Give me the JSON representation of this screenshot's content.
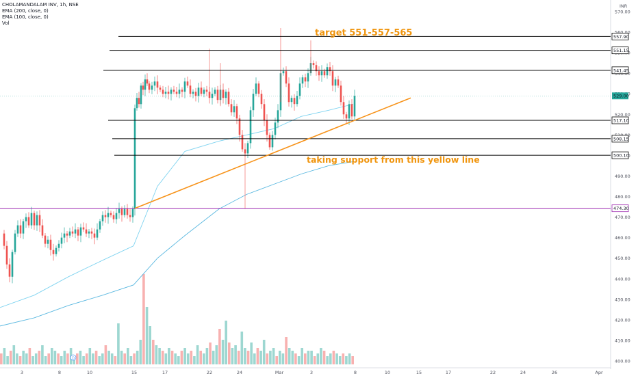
{
  "chart_data": {
    "type": "candlestick",
    "title": "CHOLAMANDALAM INV, 1h, NSE",
    "indicators": [
      "EMA (200, close, 0)",
      "EMA (100, close, 0)",
      "Vol"
    ],
    "currency_label": "INR",
    "y_ticks": [
      "570.00",
      "560.00",
      "550.00",
      "540.00",
      "530.00",
      "520.00",
      "510.00",
      "500.00",
      "490.00",
      "480.00",
      "470.00",
      "460.00",
      "450.00",
      "440.00",
      "430.00",
      "420.00",
      "410.00",
      "400.00"
    ],
    "ylim": [
      397,
      571
    ],
    "x_ticks": [
      "3",
      "8",
      "10",
      "15",
      "17",
      "22",
      "24",
      "Mar",
      "3",
      "8",
      "10",
      "15",
      "17",
      "22",
      "24",
      "26",
      "Apr"
    ],
    "horizontal_levels": [
      {
        "label": "557.90",
        "value": 557.9
      },
      {
        "label": "551.15",
        "value": 551.15
      },
      {
        "label": "541.45",
        "value": 541.45
      },
      {
        "label": "517.10",
        "value": 517.1
      },
      {
        "label": "508.15",
        "value": 508.15
      },
      {
        "label": "500.10",
        "value": 500.1
      }
    ],
    "purple_level": {
      "label": "474.30",
      "value": 474.3
    },
    "last_price": {
      "label": "529.00",
      "value": 529.0
    },
    "annotations": [
      {
        "text": "target 551-557-565"
      },
      {
        "text": "taking support from this yellow line"
      }
    ],
    "trendline": {
      "from": [
        197,
        474.3
      ],
      "to": [
        600,
        528
      ]
    },
    "price_path": [
      [
        0,
        462
      ],
      [
        6,
        456
      ],
      [
        10,
        447
      ],
      [
        14,
        441
      ],
      [
        18,
        453
      ],
      [
        22,
        462
      ],
      [
        26,
        466
      ],
      [
        30,
        462
      ],
      [
        34,
        468
      ],
      [
        38,
        470
      ],
      [
        42,
        466
      ],
      [
        46,
        472
      ],
      [
        50,
        466
      ],
      [
        54,
        471
      ],
      [
        58,
        466
      ],
      [
        62,
        461
      ],
      [
        66,
        457
      ],
      [
        70,
        459
      ],
      [
        74,
        454
      ],
      [
        78,
        452
      ],
      [
        82,
        455
      ],
      [
        86,
        457
      ],
      [
        90,
        460
      ],
      [
        94,
        462
      ],
      [
        98,
        461
      ],
      [
        102,
        463
      ],
      [
        106,
        462
      ],
      [
        110,
        464
      ],
      [
        114,
        461
      ],
      [
        118,
        465
      ],
      [
        122,
        464
      ],
      [
        126,
        462
      ],
      [
        130,
        463
      ],
      [
        134,
        462
      ],
      [
        138,
        460
      ],
      [
        142,
        464
      ],
      [
        146,
        468
      ],
      [
        150,
        471
      ],
      [
        154,
        470
      ],
      [
        158,
        472
      ],
      [
        162,
        471
      ],
      [
        166,
        469
      ],
      [
        170,
        472
      ],
      [
        174,
        474
      ],
      [
        178,
        471
      ],
      [
        182,
        474
      ],
      [
        186,
        471
      ],
      [
        190,
        470
      ],
      [
        194,
        474
      ],
      [
        197,
        523
      ],
      [
        200,
        528
      ],
      [
        203,
        525
      ],
      [
        206,
        534
      ],
      [
        209,
        532
      ],
      [
        212,
        537
      ],
      [
        215,
        535
      ],
      [
        218,
        532
      ],
      [
        222,
        534
      ],
      [
        226,
        536
      ],
      [
        230,
        533
      ],
      [
        234,
        532
      ],
      [
        238,
        530
      ],
      [
        242,
        531
      ],
      [
        246,
        530
      ],
      [
        250,
        532
      ],
      [
        254,
        531
      ],
      [
        258,
        530
      ],
      [
        262,
        532
      ],
      [
        266,
        531
      ],
      [
        270,
        536
      ],
      [
        274,
        534
      ],
      [
        278,
        530
      ],
      [
        282,
        531
      ],
      [
        286,
        529
      ],
      [
        290,
        533
      ],
      [
        294,
        530
      ],
      [
        298,
        532
      ],
      [
        302,
        531
      ],
      [
        306,
        528
      ],
      [
        310,
        530
      ],
      [
        314,
        532
      ],
      [
        318,
        527
      ],
      [
        322,
        532
      ],
      [
        326,
        528
      ],
      [
        330,
        531
      ],
      [
        334,
        525
      ],
      [
        338,
        521
      ],
      [
        342,
        524
      ],
      [
        346,
        518
      ],
      [
        350,
        510
      ],
      [
        354,
        503
      ],
      [
        358,
        501
      ],
      [
        362,
        506
      ],
      [
        366,
        522
      ],
      [
        370,
        530
      ],
      [
        374,
        535
      ],
      [
        378,
        530
      ],
      [
        382,
        525
      ],
      [
        386,
        517
      ],
      [
        390,
        510
      ],
      [
        394,
        504
      ],
      [
        398,
        510
      ],
      [
        402,
        516
      ],
      [
        406,
        522
      ],
      [
        410,
        540
      ],
      [
        414,
        541
      ],
      [
        418,
        535
      ],
      [
        422,
        526
      ],
      [
        426,
        528
      ],
      [
        430,
        525
      ],
      [
        434,
        529
      ],
      [
        438,
        535
      ],
      [
        442,
        538
      ],
      [
        446,
        536
      ],
      [
        450,
        540
      ],
      [
        454,
        545
      ],
      [
        458,
        544
      ],
      [
        462,
        541
      ],
      [
        466,
        539
      ],
      [
        470,
        541
      ],
      [
        474,
        539
      ],
      [
        478,
        543
      ],
      [
        482,
        541
      ],
      [
        486,
        534
      ],
      [
        490,
        537
      ],
      [
        494,
        534
      ],
      [
        498,
        526
      ],
      [
        502,
        520
      ],
      [
        506,
        518
      ],
      [
        510,
        525
      ],
      [
        514,
        519
      ],
      [
        518,
        529
      ]
    ],
    "ema200_path": [
      [
        0,
        426
      ],
      [
        50,
        432
      ],
      [
        100,
        441
      ],
      [
        150,
        449
      ],
      [
        195,
        456
      ],
      [
        230,
        485
      ],
      [
        270,
        502
      ],
      [
        320,
        507
      ],
      [
        360,
        510
      ],
      [
        400,
        513
      ],
      [
        440,
        519
      ],
      [
        480,
        522
      ],
      [
        516,
        525
      ]
    ],
    "ema100_path": [
      [
        0,
        417
      ],
      [
        50,
        421
      ],
      [
        100,
        427
      ],
      [
        150,
        432
      ],
      [
        195,
        437
      ],
      [
        230,
        450
      ],
      [
        270,
        461
      ],
      [
        320,
        474
      ],
      [
        360,
        481
      ],
      [
        400,
        486
      ],
      [
        440,
        491
      ],
      [
        480,
        495
      ],
      [
        516,
        497
      ]
    ],
    "volume_bars": [
      4,
      6,
      3,
      5,
      7,
      4,
      3,
      5,
      4,
      6,
      3,
      4,
      5,
      7,
      3,
      4,
      6,
      5,
      4,
      3,
      5,
      4,
      6,
      3,
      4,
      5,
      3,
      4,
      6,
      4,
      5,
      3,
      4,
      7,
      5,
      4,
      3,
      15,
      5,
      4,
      6,
      3,
      4,
      5,
      9,
      33,
      21,
      14,
      9,
      7,
      6,
      5,
      4,
      6,
      5,
      4,
      3,
      5,
      6,
      4,
      5,
      3,
      7,
      5,
      4,
      6,
      8,
      5,
      7,
      13,
      9,
      16,
      8,
      6,
      7,
      5,
      12,
      6,
      5,
      8,
      4,
      6,
      5,
      9,
      4,
      5,
      6,
      3,
      5,
      4,
      10,
      6,
      5,
      4,
      3,
      6,
      4,
      5,
      5,
      3,
      4,
      6,
      5,
      3,
      4,
      5,
      4,
      3,
      4,
      3,
      4,
      3
    ]
  }
}
